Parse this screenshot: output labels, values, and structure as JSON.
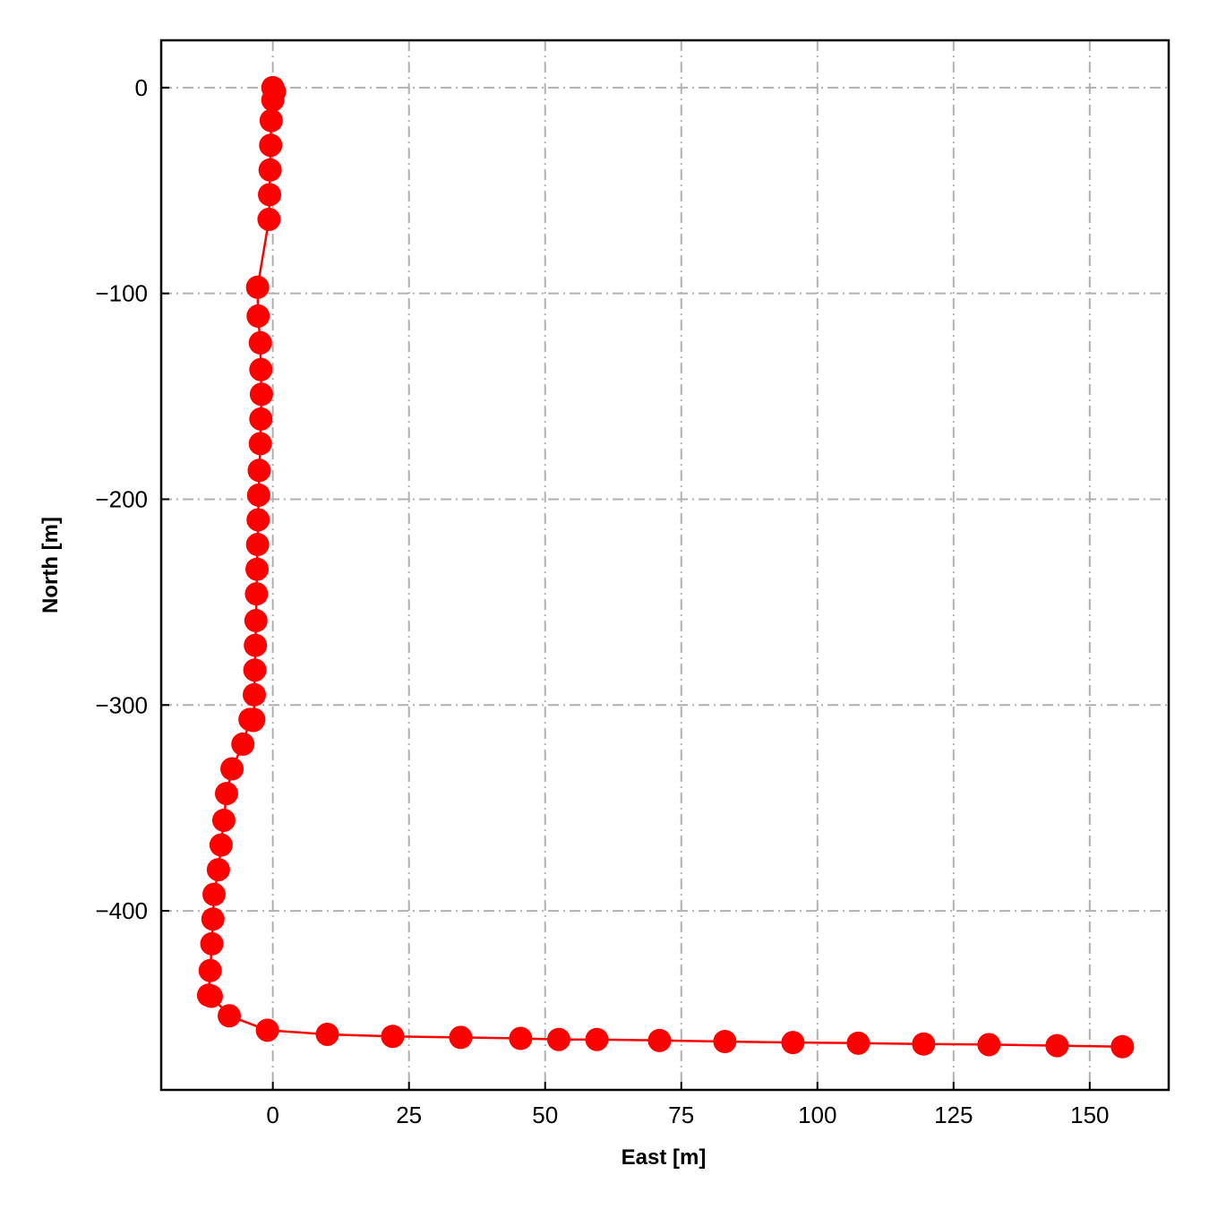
{
  "chart_data": {
    "type": "line",
    "title": "",
    "xlabel": "East [m]",
    "ylabel": "North [m]",
    "xlim": [
      -20.5,
      164.5
    ],
    "ylim": [
      -487,
      23
    ],
    "xticks": [
      0,
      25,
      50,
      75,
      100,
      125,
      150
    ],
    "yticks": [
      0,
      -100,
      -200,
      -300,
      -400
    ],
    "xtick_labels": [
      "0",
      "25",
      "50",
      "75",
      "100",
      "125",
      "150"
    ],
    "ytick_labels": [
      "0",
      "−100",
      "−200",
      "−300",
      "−400"
    ],
    "grid": true,
    "legend": "none",
    "series": [
      {
        "color": "#ff0000",
        "marker": "circle",
        "x": [
          0.0,
          0.3,
          0.0,
          -0.3,
          -0.4,
          -0.5,
          -0.6,
          -0.7,
          -2.8,
          -2.7,
          -2.3,
          -2.2,
          -2.1,
          -2.2,
          -2.3,
          -2.5,
          -2.6,
          -2.7,
          -2.8,
          -2.9,
          -3.0,
          -3.1,
          -3.2,
          -3.3,
          -3.4,
          -3.5,
          -3.6,
          -4.2,
          -5.5,
          -7.5,
          -8.5,
          -9.0,
          -9.5,
          -10.0,
          -10.8,
          -11.0,
          -11.2,
          -11.5,
          -11.8,
          -11.3,
          -8.0,
          -1.0,
          10.0,
          22.0,
          34.5,
          45.5,
          52.5,
          59.5,
          71.0,
          83.0,
          95.5,
          107.5,
          119.5,
          131.5,
          144.0,
          156.0
        ],
        "y": [
          0.0,
          -2.0,
          -6.0,
          -16.0,
          -28.0,
          -40.0,
          -52.0,
          -64.0,
          -97.0,
          -111.0,
          -124.0,
          -137.0,
          -149.0,
          -161.0,
          -173.0,
          -186.0,
          -198.0,
          -210.0,
          -222.0,
          -234.0,
          -246.0,
          -259.0,
          -271.0,
          -283.0,
          -295.0,
          -307.0,
          -307.5,
          -307.0,
          -319.0,
          -331.0,
          -343.0,
          -356.0,
          -368.0,
          -380.0,
          -392.0,
          -404.0,
          -416.0,
          -429.0,
          -441.0,
          -441.5,
          -451.0,
          -458.0,
          -460.0,
          -461.0,
          -461.5,
          -462.0,
          -462.5,
          -462.5,
          -463.0,
          -463.5,
          -464.0,
          -464.3,
          -464.7,
          -465.0,
          -465.5,
          -466.0
        ]
      }
    ]
  }
}
